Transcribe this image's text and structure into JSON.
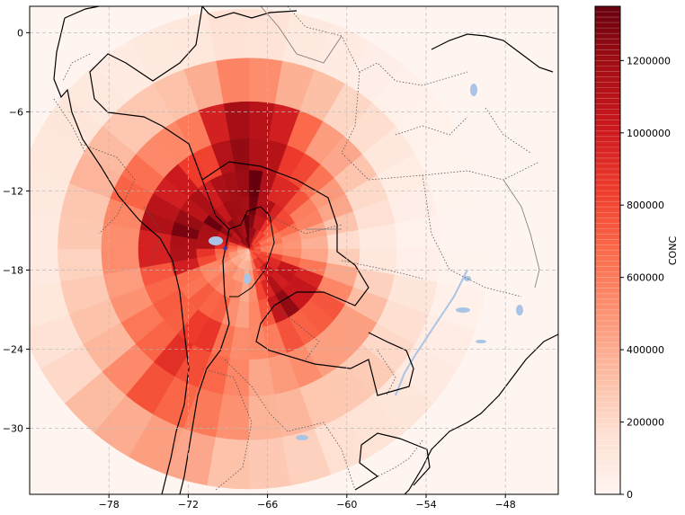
{
  "chart_data": {
    "type": "heatmap",
    "projection": "plate-carree",
    "xlim": [
      -84,
      -44
    ],
    "ylim": [
      -35,
      2
    ],
    "x_ticks": [
      "−78",
      "−72",
      "−66",
      "−60",
      "−54",
      "−48"
    ],
    "y_ticks": [
      "0",
      "−6",
      "−12",
      "−18",
      "−24",
      "−30"
    ],
    "grid": true,
    "source_point": {
      "lon": -67.4,
      "lat": -16.4
    },
    "polar_bins": {
      "radii_deg": [
        0.4,
        0.9,
        1.6,
        2.6,
        4.0,
        6.0,
        8.4,
        11.2,
        14.5,
        18.2
      ],
      "sector_width_deg": 10,
      "description": "Concentration field on a polar grid centred on the source point; values in CONC units"
    },
    "sector_profiles": [
      {
        "bearing_deg": 0,
        "values": [
          900000,
          700000,
          600000,
          500000,
          420000,
          300000,
          150000,
          60000,
          20000,
          5000
        ]
      },
      {
        "bearing_deg": 30,
        "values": [
          900000,
          800000,
          700000,
          650000,
          700000,
          600000,
          450000,
          250000,
          80000,
          20000
        ]
      },
      {
        "bearing_deg": 60,
        "values": [
          1000000,
          900000,
          900000,
          950000,
          1000000,
          950000,
          800000,
          550000,
          250000,
          60000
        ]
      },
      {
        "bearing_deg": 90,
        "values": [
          1350000,
          1350000,
          1350000,
          1350000,
          1350000,
          1350000,
          1350000,
          1300000,
          600000,
          150000
        ]
      },
      {
        "bearing_deg": 120,
        "values": [
          1300000,
          1250000,
          1200000,
          1150000,
          1100000,
          1000000,
          800000,
          500000,
          250000,
          80000
        ]
      },
      {
        "bearing_deg": 150,
        "values": [
          1000000,
          1050000,
          1100000,
          1200000,
          1300000,
          1250000,
          1100000,
          700000,
          350000,
          120000
        ]
      },
      {
        "bearing_deg": 180,
        "values": [
          400000,
          450000,
          600000,
          800000,
          1000000,
          1250000,
          1000000,
          500000,
          250000,
          80000
        ]
      },
      {
        "bearing_deg": 210,
        "values": [
          400000,
          400000,
          450000,
          500000,
          550000,
          600000,
          650000,
          500000,
          300000,
          150000
        ]
      },
      {
        "bearing_deg": 240,
        "values": [
          300000,
          350000,
          400000,
          500000,
          600000,
          750000,
          900000,
          950000,
          800000,
          500000
        ]
      },
      {
        "bearing_deg": 270,
        "values": [
          250000,
          300000,
          350000,
          400000,
          400000,
          400000,
          450000,
          450000,
          400000,
          300000
        ]
      },
      {
        "bearing_deg": 300,
        "values": [
          700000,
          800000,
          900000,
          1000000,
          1100000,
          1200000,
          800000,
          500000,
          300000,
          150000
        ]
      },
      {
        "bearing_deg": 330,
        "values": [
          800000,
          800000,
          900000,
          1000000,
          1100000,
          1000000,
          700000,
          400000,
          200000,
          80000
        ]
      }
    ],
    "colorbar": {
      "label": "CONC",
      "cmap": "Reds",
      "min": 0,
      "max": 1350000,
      "ticks": [
        "0",
        "200000",
        "400000",
        "600000",
        "800000",
        "1000000",
        "1200000"
      ],
      "tick_values": [
        0,
        200000,
        400000,
        600000,
        800000,
        1000000,
        1200000
      ]
    },
    "colors": {
      "ramp": [
        "#fff5f0",
        "#fee0d2",
        "#fcbba1",
        "#fc9272",
        "#fb6a4a",
        "#ef3b2c",
        "#cb181d",
        "#a50f15",
        "#67000d"
      ],
      "coast": "#000000",
      "border": "#333333",
      "water": "#aac4e6",
      "source_marker": "#1f3fbf",
      "grid": "#bbbbbb"
    }
  }
}
